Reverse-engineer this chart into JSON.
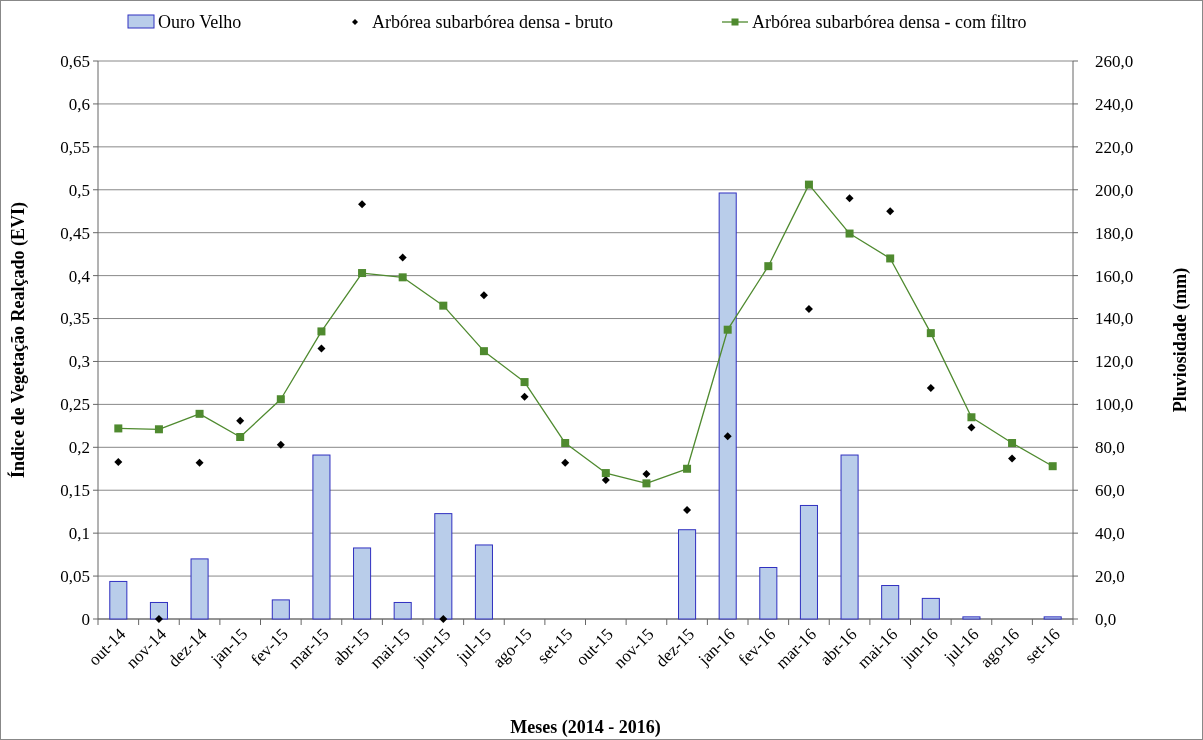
{
  "chart_data": {
    "type": "bar",
    "xlabel": "Meses (2014 - 2016)",
    "ylabel": "Índice de Vegetação Realçado (EVI)",
    "y2label": "Pluviosidade (mm)",
    "categories": [
      "out-14",
      "nov-14",
      "dez-14",
      "jan-15",
      "fev-15",
      "mar-15",
      "abr-15",
      "mai-15",
      "jun-15",
      "jul-15",
      "ago-15",
      "set-15",
      "out-15",
      "nov-15",
      "dez-15",
      "jan-16",
      "fev-16",
      "mar-16",
      "abr-16",
      "mai-16",
      "jun-16",
      "jul-16",
      "ago-16",
      "set-16"
    ],
    "series": [
      {
        "name": "Ouro Velho",
        "axis": "y2",
        "color": "#b9cdea",
        "values": [
          17.5,
          7.7,
          28,
          0,
          8.9,
          76.4,
          33.1,
          7.7,
          49.1,
          34.5,
          0,
          0,
          0,
          0,
          41.6,
          198.5,
          24,
          52.9,
          76.4,
          15.6,
          9.6,
          1,
          0,
          1
        ]
      },
      {
        "name": "Arbórea subarbórea densa - bruto",
        "type": "scatter",
        "marker": "diamond",
        "color": "#000000",
        "values": [
          0.183,
          0,
          0.182,
          0.231,
          0.203,
          0.315,
          0.483,
          0.421,
          0,
          0.377,
          0.259,
          0.182,
          0.162,
          0.169,
          0.127,
          0.213,
          null,
          0.361,
          0.49,
          0.475,
          0.269,
          0.223,
          0.187,
          null
        ]
      },
      {
        "name": "Arbórea subarbórea densa - com filtro",
        "type": "line",
        "marker": "square",
        "color": "#4f8a2f",
        "values": [
          0.222,
          0.221,
          0.239,
          0.212,
          0.256,
          0.335,
          0.403,
          0.398,
          0.365,
          0.312,
          0.276,
          0.205,
          0.17,
          0.158,
          0.175,
          0.337,
          0.411,
          0.506,
          0.449,
          0.42,
          0.333,
          0.235,
          0.205,
          0.178
        ]
      }
    ],
    "ylim": [
      0,
      0.65
    ],
    "yticks": [
      0,
      {
        "value": 0.05,
        "label": "0,05"
      },
      {
        "value": 0.1,
        "label": "0,1"
      },
      {
        "value": 0.15,
        "label": "0,15"
      },
      {
        "value": 0.2,
        "label": "0,2"
      },
      {
        "value": 0.25,
        "label": "0,25"
      },
      {
        "value": 0.3,
        "label": "0,3"
      },
      {
        "value": 0.35,
        "label": "0,35"
      },
      {
        "value": 0.4,
        "label": "0,4"
      },
      {
        "value": 0.45,
        "label": "0,45"
      },
      {
        "value": 0.5,
        "label": "0,5"
      },
      {
        "value": 0.55,
        "label": "0,55"
      },
      {
        "value": 0.6,
        "label": "0,6"
      },
      {
        "value": 0.65,
        "label": "0,65"
      }
    ],
    "y2lim": [
      0,
      260
    ],
    "y2ticks": [
      {
        "value": 0,
        "label": "0,0"
      },
      {
        "value": 20,
        "label": "20,0"
      },
      {
        "value": 40,
        "label": "40,0"
      },
      {
        "value": 60,
        "label": "60,0"
      },
      {
        "value": 80,
        "label": "80,0"
      },
      {
        "value": 100,
        "label": "100,0"
      },
      {
        "value": 120,
        "label": "120,0"
      },
      {
        "value": 140,
        "label": "140,0"
      },
      {
        "value": 160,
        "label": "160,0"
      },
      {
        "value": 180,
        "label": "180,0"
      },
      {
        "value": 200,
        "label": "200,0"
      },
      {
        "value": 220,
        "label": "220,0"
      },
      {
        "value": 240,
        "label": "240,0"
      },
      {
        "value": 260,
        "label": "260,0"
      }
    ],
    "grid": "y",
    "legend": "top"
  }
}
